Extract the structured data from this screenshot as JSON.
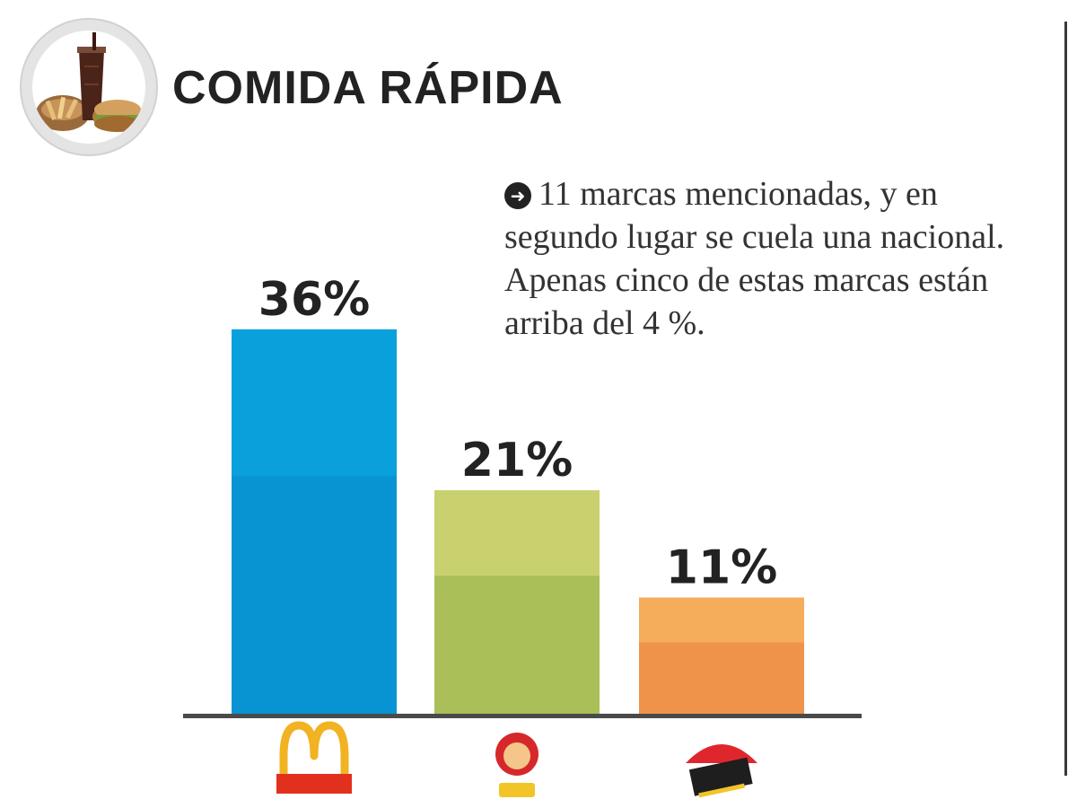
{
  "header": {
    "title": "COMIDA RÁPIDA",
    "badge_icon": "fast-food-icon"
  },
  "note": {
    "icon": "arrow-circle-icon",
    "text": "11 marcas mencionadas, y en segundo lugar se cuela una nacional. Apenas cinco de estas marcas están arriba del 4 %."
  },
  "chart_data": {
    "type": "bar",
    "categories": [
      "McDonald's",
      "Tip-Top",
      "Pizza Hut"
    ],
    "values": [
      36,
      21,
      11
    ],
    "unit": "%",
    "data_labels": [
      "36%",
      "21%",
      "11%"
    ],
    "colors": {
      "top": [
        "#0aa0db",
        "#c8d16e",
        "#f5ac5b"
      ],
      "bottom": [
        "#0894d2",
        "#aabf58",
        "#f0934a"
      ]
    },
    "ylim": [
      0,
      40
    ],
    "grid": false,
    "legend": "none"
  },
  "brands": [
    {
      "name": "McDonald's",
      "icon": "mcdonalds-logo"
    },
    {
      "name": "Tip-Top",
      "icon": "tiptop-logo"
    },
    {
      "name": "Pizza Hut",
      "icon": "pizzahut-logo"
    }
  ]
}
